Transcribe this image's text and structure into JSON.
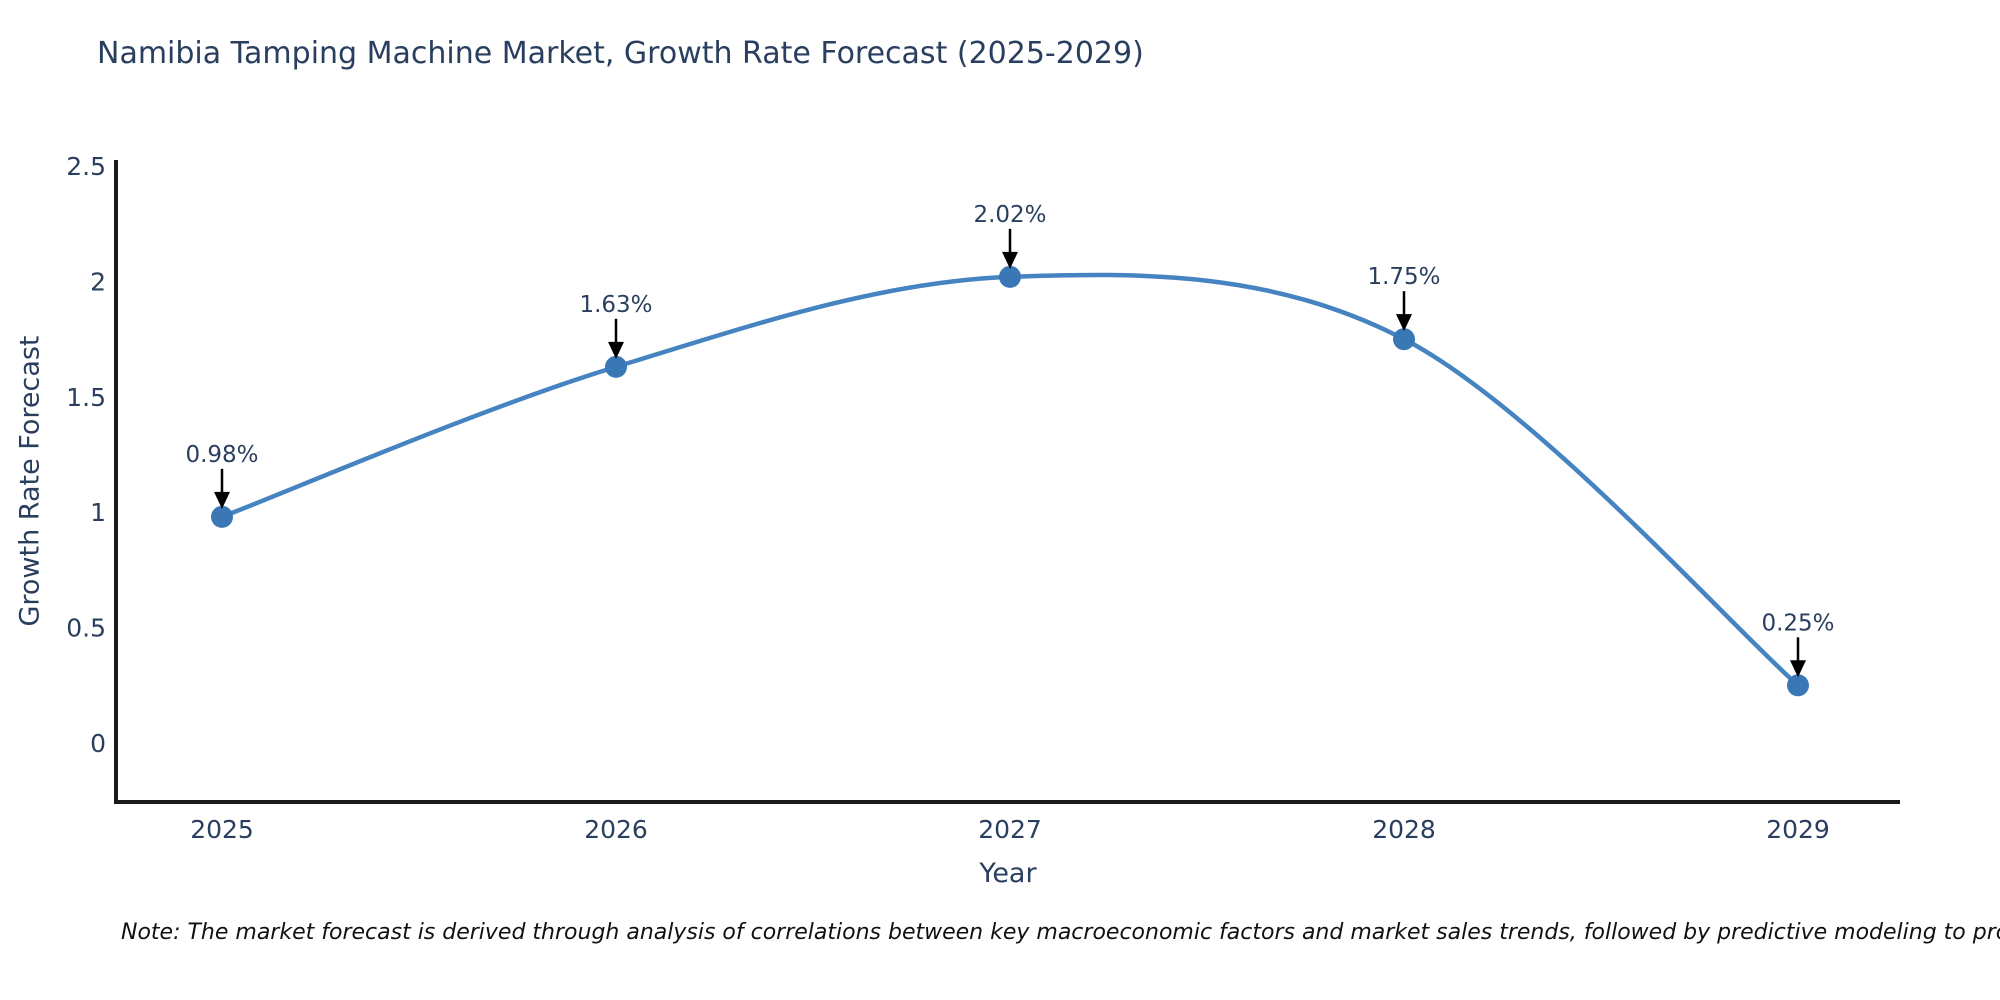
{
  "title": "Namibia Tamping Machine Market, Growth Rate Forecast (2025-2029)",
  "xlabel": "Year",
  "ylabel": "Growth Rate Forecast",
  "note": "Note: The market forecast is derived through analysis of correlations between key macroeconomic factors and market sales trends, followed by predictive modeling to project future sales",
  "colors": {
    "line": "#4583c1",
    "marker": "#3a78b5",
    "axis": "#1a1a1a",
    "text": "#2a3f5f",
    "arrow": "#000000",
    "note_text": "#111111",
    "background": "#ffffff"
  },
  "chart_data": {
    "type": "line",
    "line_shape": "spline",
    "x": [
      2025,
      2026,
      2027,
      2028,
      2029
    ],
    "xtick_labels": [
      "2025",
      "2026",
      "2027",
      "2028",
      "2029"
    ],
    "series": [
      {
        "name": "Growth Rate Forecast",
        "values": [
          0.98,
          1.63,
          2.02,
          1.75,
          0.25
        ]
      }
    ],
    "point_labels": [
      "0.98%",
      "1.63%",
      "2.02%",
      "1.75%",
      "0.25%"
    ],
    "title": "Namibia Tamping Machine Market, Growth Rate Forecast (2025-2029)",
    "xlabel": "Year",
    "ylabel": "Growth Rate Forecast",
    "yticks": [
      0,
      0.5,
      1,
      1.5,
      2,
      2.5
    ],
    "ytick_labels": [
      "0",
      "0.5",
      "1",
      "1.5",
      "2",
      "2.5"
    ],
    "ylim": [
      -0.26,
      2.5
    ],
    "grid": false,
    "legend_position": "none",
    "annotations": "each point labeled with percent value and downward black arrow"
  }
}
